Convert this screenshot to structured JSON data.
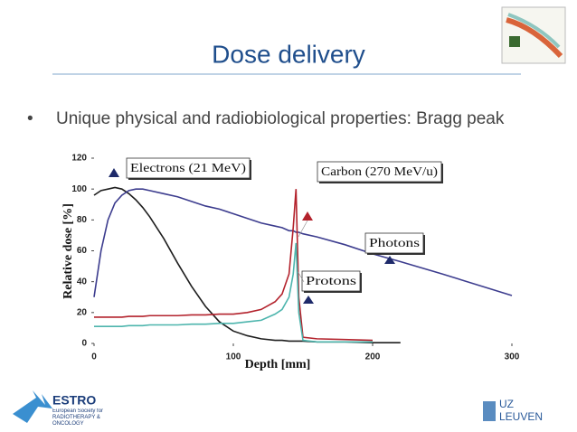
{
  "slide": {
    "title": "Dose delivery",
    "bullet": "Unique physical and radiobiological properties: Bragg peak",
    "footer_left": {
      "name": "ESTRO",
      "subtitle": "European Society for RADIOTHERAPY & ONCOLOGY"
    },
    "footer_right": {
      "name": "UZ LEUVEN"
    }
  },
  "chart_data": {
    "type": "line",
    "x_label": "Depth [mm]",
    "y_label": "Relative dose [%]",
    "x": [
      0,
      5,
      10,
      15,
      20,
      25,
      30,
      35,
      40,
      50,
      60,
      70,
      80,
      90,
      100,
      110,
      120,
      130,
      135,
      140,
      143,
      145,
      147,
      150,
      160,
      180,
      200,
      220,
      250,
      300
    ],
    "series": [
      {
        "name": "Electrons (21 MeV)",
        "color": "#1e1e1e",
        "values": [
          96,
          99,
          100,
          101,
          100,
          97,
          93,
          88,
          82,
          68,
          52,
          37,
          24,
          14,
          8,
          5,
          3,
          2,
          2,
          1.5,
          1.5,
          1.5,
          1.5,
          1.5,
          1,
          1,
          0.5,
          0.5,
          null,
          null
        ]
      },
      {
        "name": "Photons",
        "color": "#3c3c8e",
        "values": [
          30,
          60,
          80,
          91,
          96,
          99,
          100,
          100,
          99,
          97,
          95,
          92,
          89,
          87,
          84,
          81,
          78,
          76,
          75,
          73,
          73,
          72,
          72,
          71,
          69,
          64,
          58,
          53,
          45,
          31
        ]
      },
      {
        "name": "Carbon (270 MeV/u)",
        "color": "#b3222c",
        "values": [
          17,
          17,
          17,
          17,
          17,
          17.5,
          17.5,
          17.5,
          18,
          18,
          18,
          18.5,
          18.5,
          19,
          19,
          20,
          22,
          27,
          32,
          45,
          75,
          100,
          30,
          4,
          3,
          2.5,
          2,
          null,
          null,
          null
        ]
      },
      {
        "name": "Protons",
        "color": "#4db5ad",
        "values": [
          11,
          11,
          11,
          11,
          11,
          11.5,
          11.5,
          11.5,
          12,
          12,
          12,
          12.5,
          12.5,
          13,
          13,
          14,
          15,
          19,
          22,
          30,
          45,
          65,
          20,
          2,
          1,
          1,
          1,
          null,
          null,
          null
        ]
      }
    ],
    "xlim": [
      0,
      300
    ],
    "ylim": [
      0,
      120
    ],
    "xticks": [
      0,
      100,
      200,
      300
    ],
    "yticks": [
      0,
      20,
      40,
      60,
      80,
      100,
      120
    ]
  }
}
